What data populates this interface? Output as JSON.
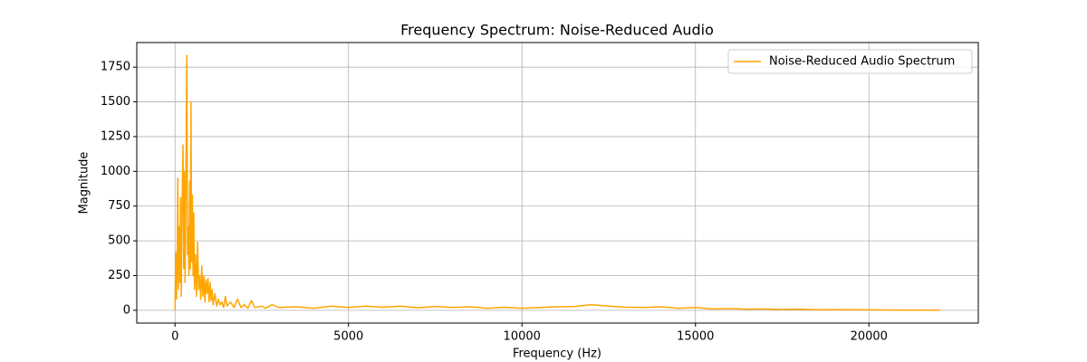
{
  "chart_data": {
    "type": "line",
    "title": "Frequency Spectrum: Noise-Reduced Audio",
    "x_label": "Frequency (Hz)",
    "y_label": "Magnitude",
    "x": [
      0,
      20,
      40,
      60,
      80,
      100,
      120,
      140,
      160,
      180,
      200,
      230,
      250,
      270,
      290,
      340,
      360,
      380,
      400,
      420,
      440,
      460,
      480,
      500,
      520,
      540,
      560,
      590,
      620,
      650,
      680,
      710,
      740,
      770,
      800,
      830,
      860,
      890,
      920,
      950,
      980,
      1010,
      1040,
      1070,
      1100,
      1150,
      1200,
      1250,
      1300,
      1350,
      1400,
      1450,
      1500,
      1600,
      1700,
      1800,
      1900,
      2000,
      2100,
      2200,
      2300,
      2500,
      2600,
      2800,
      3000,
      3500,
      4000,
      4500,
      5000,
      5500,
      6000,
      6500,
      7000,
      7500,
      8000,
      8500,
      9000,
      9500,
      10000,
      10500,
      11000,
      11500,
      12000,
      12500,
      13000,
      13500,
      14000,
      14500,
      15000,
      15500,
      16000,
      16500,
      17000,
      17500,
      18000,
      18500,
      19000,
      20000,
      21000,
      22050
    ],
    "series": [
      {
        "name": "Noise-Reduced Audio Spectrum",
        "color": "#ffa500",
        "values": [
          0,
          420,
          80,
          300,
          950,
          150,
          600,
          200,
          810,
          100,
          700,
          1190,
          300,
          1000,
          200,
          1835,
          400,
          600,
          250,
          930,
          300,
          1500,
          350,
          830,
          250,
          700,
          150,
          400,
          100,
          490,
          150,
          250,
          80,
          320,
          100,
          250,
          60,
          220,
          120,
          230,
          60,
          200,
          70,
          150,
          40,
          120,
          30,
          80,
          40,
          60,
          20,
          100,
          30,
          60,
          20,
          80,
          20,
          40,
          15,
          70,
          20,
          30,
          15,
          40,
          20,
          25,
          15,
          30,
          20,
          30,
          22,
          30,
          18,
          28,
          20,
          25,
          15,
          22,
          15,
          20,
          25,
          28,
          40,
          30,
          22,
          20,
          25,
          15,
          20,
          10,
          12,
          8,
          10,
          6,
          8,
          4,
          5,
          3,
          2,
          1
        ]
      }
    ],
    "xlim": [
      -1102.5,
      23152.5
    ],
    "ylim": [
      -92,
      1927
    ],
    "xticks": [
      0,
      5000,
      10000,
      15000,
      20000
    ],
    "yticks": [
      0,
      250,
      500,
      750,
      1000,
      1250,
      1500,
      1750
    ],
    "grid": true,
    "legend": "upper right"
  }
}
